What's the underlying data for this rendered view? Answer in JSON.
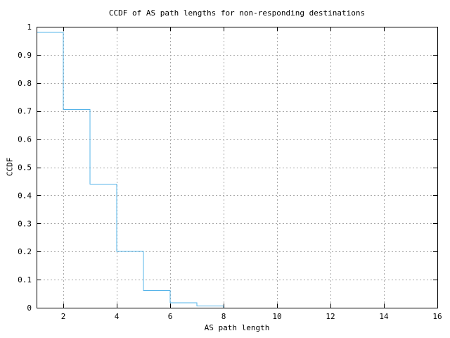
{
  "chart_data": {
    "type": "line",
    "subtype": "step-ccdf",
    "title": "CCDF of AS path lengths for non-responding destinations",
    "xlabel": "AS path length",
    "ylabel": "CCDF",
    "xlim": [
      1,
      16
    ],
    "ylim": [
      0,
      1
    ],
    "grid": true,
    "legend_position": "none",
    "line_color": "#56b4e9",
    "grid_color": "#a8a8a8",
    "axis_color": "#000000",
    "xticks": [
      {
        "v": 2,
        "label": "2"
      },
      {
        "v": 4,
        "label": "4"
      },
      {
        "v": 6,
        "label": "6"
      },
      {
        "v": 8,
        "label": "8"
      },
      {
        "v": 10,
        "label": "10"
      },
      {
        "v": 12,
        "label": "12"
      },
      {
        "v": 14,
        "label": "14"
      },
      {
        "v": 16,
        "label": "16"
      }
    ],
    "yticks": [
      {
        "v": 0.0,
        "label": "0"
      },
      {
        "v": 0.1,
        "label": "0.1"
      },
      {
        "v": 0.2,
        "label": "0.2"
      },
      {
        "v": 0.3,
        "label": "0.3"
      },
      {
        "v": 0.4,
        "label": "0.4"
      },
      {
        "v": 0.5,
        "label": "0.5"
      },
      {
        "v": 0.6,
        "label": "0.6"
      },
      {
        "v": 0.7,
        "label": "0.7"
      },
      {
        "v": 0.8,
        "label": "0.8"
      },
      {
        "v": 0.9,
        "label": "0.9"
      },
      {
        "v": 1.0,
        "label": "1"
      }
    ],
    "series": [
      {
        "name": "CCDF of AS path length",
        "note": "step value y[i] holds on interval [x[i], x[i+1])",
        "x": [
          1,
          2,
          3,
          4,
          5,
          6,
          7,
          8
        ],
        "y": [
          0.98,
          0.705,
          0.44,
          0.201,
          0.061,
          0.017,
          0.006,
          0
        ]
      }
    ]
  }
}
